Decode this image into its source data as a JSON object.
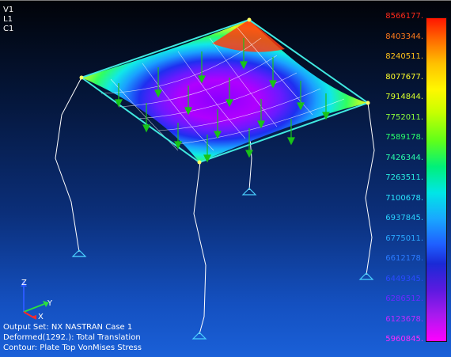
{
  "view": {
    "line1": "V1",
    "line2": "L1",
    "line3": "C1"
  },
  "legend": [
    {
      "label": "8566177.",
      "color": "#ff2a1a"
    },
    {
      "label": "8403344.",
      "color": "#ff7a1a"
    },
    {
      "label": "8240511.",
      "color": "#ffc21a"
    },
    {
      "label": "8077677.",
      "color": "#ffff2a"
    },
    {
      "label": "7914844.",
      "color": "#d8ff2a"
    },
    {
      "label": "7752011.",
      "color": "#8cff3a"
    },
    {
      "label": "7589178.",
      "color": "#2aff6a"
    },
    {
      "label": "7426344.",
      "color": "#2affaa"
    },
    {
      "label": "7263511.",
      "color": "#2af0e0"
    },
    {
      "label": "7100678.",
      "color": "#2ae6ff"
    },
    {
      "label": "6937845.",
      "color": "#2ad2ff"
    },
    {
      "label": "6775011.",
      "color": "#2aa8ff"
    },
    {
      "label": "6612178.",
      "color": "#2a7aff"
    },
    {
      "label": "6449345.",
      "color": "#2a4aff"
    },
    {
      "label": "6286512.",
      "color": "#6a2aff"
    },
    {
      "label": "6123678.",
      "color": "#c02aff"
    },
    {
      "label": "5960845.",
      "color": "#ff2aff"
    }
  ],
  "triad": {
    "z": "Z",
    "y": "Y",
    "x": "X"
  },
  "info": {
    "output_set": "Output Set: NX NASTRAN Case 1",
    "deformed": "Deformed(1292.): Total Translation",
    "contour": "Contour: Plate Top VonMises Stress"
  }
}
